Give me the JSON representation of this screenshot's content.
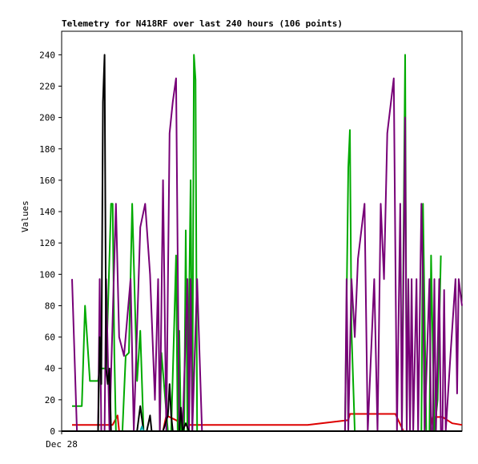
{
  "chart_data": {
    "type": "line",
    "title": "Telemetry for N418RF over last 240 hours (106 points)",
    "xlabel": "",
    "ylabel": "Values",
    "x_ticks": [
      "Dec 28"
    ],
    "ylim": [
      0,
      255
    ],
    "y_ticks": [
      0,
      20,
      40,
      60,
      80,
      100,
      120,
      140,
      160,
      180,
      200,
      220,
      240
    ],
    "x_domain": [
      0,
      240
    ],
    "grid": false,
    "colors": {
      "red": "#dd0000",
      "green": "#00aa00",
      "purple": "#770077",
      "black": "#000000",
      "cyan": "#00aaaa"
    },
    "series": [
      {
        "color": "red",
        "points": [
          [
            0,
            4
          ],
          [
            25,
            4
          ],
          [
            28,
            10
          ],
          [
            29,
            0
          ],
          [
            56,
            0
          ],
          [
            58,
            10
          ],
          [
            64,
            7
          ],
          [
            68,
            4
          ],
          [
            145,
            4
          ],
          [
            170,
            7
          ],
          [
            171,
            11
          ],
          [
            199,
            11
          ],
          [
            204,
            0
          ],
          [
            220,
            0
          ],
          [
            222,
            9
          ],
          [
            228,
            9
          ],
          [
            234,
            5
          ],
          [
            240,
            4
          ]
        ]
      },
      {
        "color": "green",
        "points": [
          [
            0,
            16
          ],
          [
            6,
            16
          ],
          [
            8,
            80
          ],
          [
            11,
            32
          ],
          [
            16,
            32
          ],
          [
            17,
            40
          ],
          [
            18,
            40
          ],
          [
            21,
            40
          ],
          [
            24,
            145
          ],
          [
            25,
            145
          ],
          [
            26,
            50
          ],
          [
            27,
            0
          ],
          [
            31,
            0
          ],
          [
            33,
            48
          ],
          [
            35,
            50
          ],
          [
            37,
            145
          ],
          [
            40,
            32
          ],
          [
            42,
            64
          ],
          [
            44,
            0
          ],
          [
            54,
            0
          ],
          [
            55,
            50
          ],
          [
            59,
            0
          ],
          [
            61,
            0
          ],
          [
            63,
            72
          ],
          [
            64,
            112
          ],
          [
            65,
            0
          ],
          [
            66,
            64
          ],
          [
            67,
            0
          ],
          [
            69,
            0
          ],
          [
            70,
            128
          ],
          [
            71,
            0
          ],
          [
            73,
            160
          ],
          [
            74,
            0
          ],
          [
            75,
            240
          ],
          [
            76,
            224
          ],
          [
            77,
            0
          ],
          [
            168,
            0
          ],
          [
            170,
            168
          ],
          [
            171,
            192
          ],
          [
            172,
            64
          ],
          [
            174,
            0
          ],
          [
            203,
            0
          ],
          [
            205,
            240
          ],
          [
            206,
            0
          ],
          [
            215,
            0
          ],
          [
            216,
            145
          ],
          [
            218,
            0
          ],
          [
            220,
            0
          ],
          [
            221,
            112
          ],
          [
            223,
            0
          ],
          [
            225,
            20
          ],
          [
            227,
            112
          ]
        ]
      },
      {
        "color": "purple",
        "points": [
          [
            0,
            97
          ],
          [
            3,
            0
          ],
          [
            16,
            0
          ],
          [
            17,
            97
          ],
          [
            18,
            0
          ],
          [
            20,
            0
          ],
          [
            21,
            97
          ],
          [
            23,
            0
          ],
          [
            27,
            145
          ],
          [
            29,
            60
          ],
          [
            32,
            48
          ],
          [
            36,
            97
          ],
          [
            38,
            0
          ],
          [
            42,
            130
          ],
          [
            45,
            145
          ],
          [
            48,
            100
          ],
          [
            51,
            20
          ],
          [
            53,
            97
          ],
          [
            54,
            0
          ],
          [
            56,
            160
          ],
          [
            58,
            0
          ],
          [
            60,
            190
          ],
          [
            62,
            210
          ],
          [
            64,
            225
          ],
          [
            66,
            0
          ],
          [
            68,
            0
          ],
          [
            71,
            97
          ],
          [
            72,
            0
          ],
          [
            73,
            97
          ],
          [
            74,
            0
          ],
          [
            77,
            97
          ],
          [
            80,
            0
          ],
          [
            168,
            0
          ],
          [
            169,
            97
          ],
          [
            170,
            0
          ],
          [
            172,
            97
          ],
          [
            174,
            60
          ],
          [
            176,
            110
          ],
          [
            180,
            145
          ],
          [
            182,
            0
          ],
          [
            186,
            97
          ],
          [
            188,
            0
          ],
          [
            190,
            145
          ],
          [
            192,
            97
          ],
          [
            194,
            190
          ],
          [
            198,
            225
          ],
          [
            200,
            0
          ],
          [
            202,
            145
          ],
          [
            203,
            0
          ],
          [
            205,
            200
          ],
          [
            206,
            0
          ],
          [
            207,
            97
          ],
          [
            208,
            0
          ],
          [
            209,
            97
          ],
          [
            210,
            0
          ],
          [
            212,
            97
          ],
          [
            213,
            0
          ],
          [
            215,
            145
          ],
          [
            216,
            97
          ],
          [
            217,
            0
          ],
          [
            220,
            97
          ],
          [
            221,
            0
          ],
          [
            222,
            0
          ],
          [
            223,
            97
          ],
          [
            224,
            0
          ],
          [
            226,
            97
          ],
          [
            227,
            0
          ],
          [
            228,
            0
          ],
          [
            229,
            90
          ],
          [
            230,
            0
          ],
          [
            233,
            50
          ],
          [
            236,
            97
          ],
          [
            237,
            24
          ],
          [
            238,
            97
          ],
          [
            240,
            80
          ]
        ]
      },
      {
        "color": "black",
        "points": [
          [
            16,
            0
          ],
          [
            17,
            60
          ],
          [
            18,
            30
          ],
          [
            19,
            210
          ],
          [
            20,
            240
          ],
          [
            21,
            40
          ],
          [
            22,
            30
          ],
          [
            23,
            40
          ],
          [
            24,
            0
          ],
          [
            40,
            0
          ],
          [
            42,
            16
          ],
          [
            44,
            0
          ],
          [
            46,
            0
          ],
          [
            48,
            10
          ],
          [
            49,
            0
          ],
          [
            56,
            0
          ],
          [
            59,
            10
          ],
          [
            60,
            30
          ],
          [
            61,
            10
          ],
          [
            62,
            0
          ],
          [
            66,
            0
          ],
          [
            67,
            15
          ],
          [
            68,
            0
          ],
          [
            70,
            5
          ],
          [
            72,
            0
          ]
        ]
      },
      {
        "color": "cyan",
        "points": [
          [
            42,
            0
          ],
          [
            43,
            3
          ],
          [
            44,
            0
          ]
        ]
      }
    ]
  }
}
